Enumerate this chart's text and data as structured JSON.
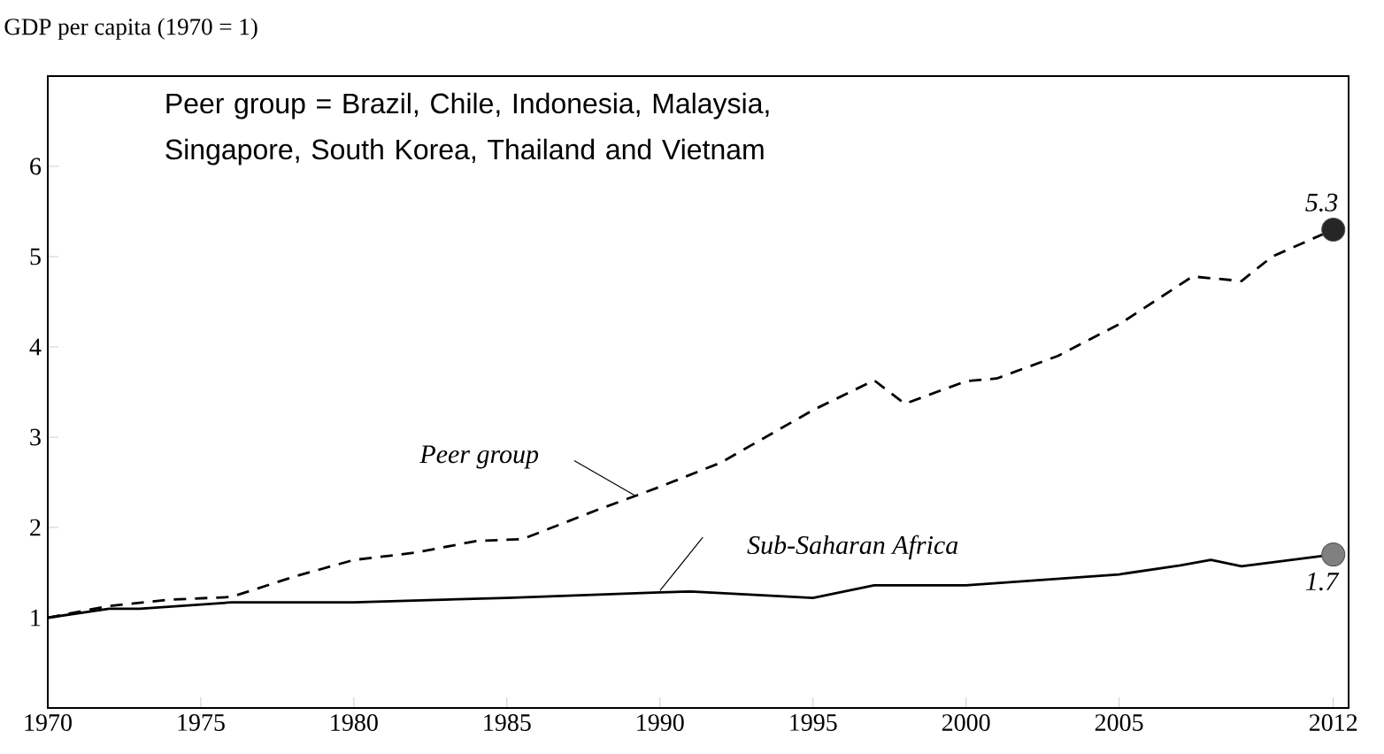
{
  "chart_data": {
    "type": "line",
    "ylabel": "GDP per capita (1970 = 1)",
    "annotations": [
      "Peer group = Brazil, Chile, Indonesia, Malaysia, Singapore, South Korea, Thailand and Vietnam",
      {
        "text": "5.3",
        "x": 2012,
        "y": 5.3
      },
      {
        "text": "1.7",
        "x": 2012,
        "y": 1.7
      }
    ],
    "series": [
      {
        "name": "Peer group",
        "color": "#000000",
        "line_style": "dashed",
        "x": [
          1970,
          1972,
          1974,
          1976,
          1978,
          1980,
          1982,
          1984,
          1985.5,
          1988,
          1990,
          1992,
          1995,
          1997,
          1998,
          2000,
          2001,
          2003,
          2005,
          2007.4,
          2009,
          2010,
          2012
        ],
        "values": [
          1.0,
          1.13,
          1.2,
          1.23,
          1.45,
          1.64,
          1.72,
          1.85,
          1.87,
          2.2,
          2.45,
          2.72,
          3.3,
          3.63,
          3.37,
          3.62,
          3.65,
          3.9,
          4.25,
          4.78,
          4.73,
          5.0,
          5.3
        ]
      },
      {
        "name": "Sub-Saharan Africa",
        "color": "#000000",
        "line_style": "solid",
        "x": [
          1970,
          1972,
          1973,
          1976,
          1980,
          1985,
          1990,
          1991,
          1995,
          1997,
          2000,
          2005,
          2007,
          2008,
          2009,
          2012
        ],
        "values": [
          1.0,
          1.1,
          1.1,
          1.17,
          1.17,
          1.22,
          1.28,
          1.29,
          1.22,
          1.36,
          1.36,
          1.48,
          1.58,
          1.64,
          1.57,
          1.7
        ]
      }
    ],
    "xlim": [
      1970,
      2012.5
    ],
    "ylim": [
      0,
      7
    ],
    "xticks": [
      1970,
      1975,
      1980,
      1985,
      1990,
      1995,
      2000,
      2005,
      2012
    ],
    "yticks": [
      1,
      2,
      3,
      4,
      5,
      6
    ],
    "grid": false,
    "marker": "none"
  }
}
